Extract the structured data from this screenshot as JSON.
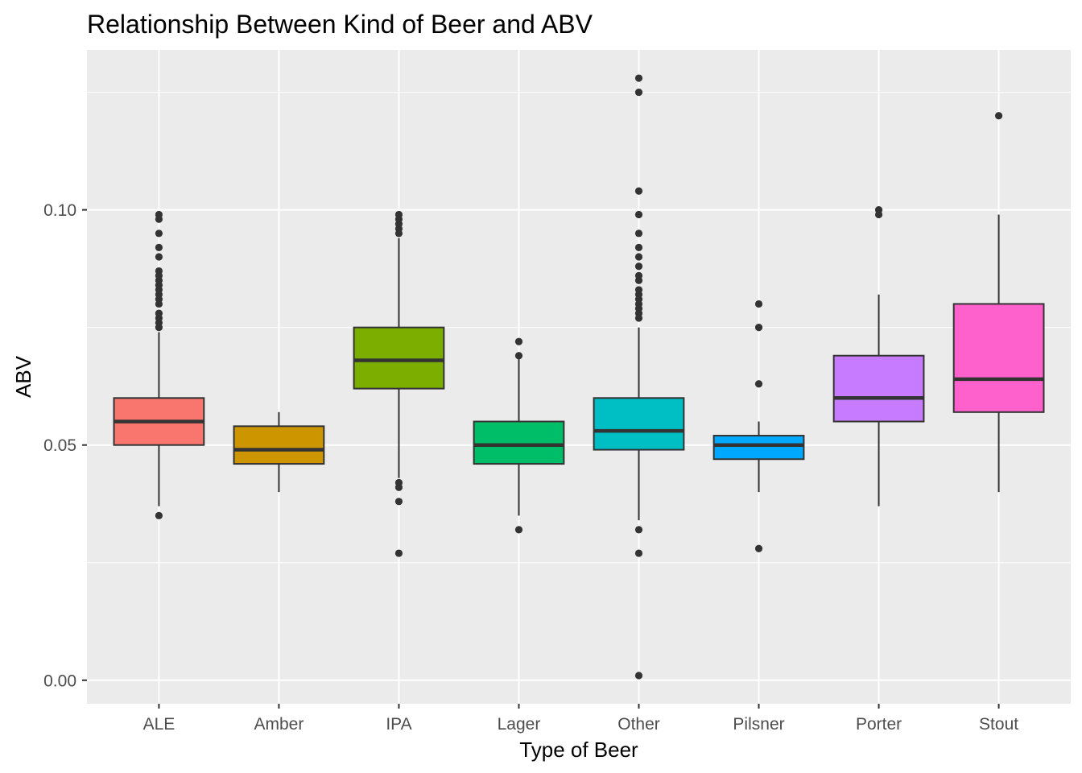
{
  "chart_data": {
    "type": "boxplot",
    "title": "Relationship Between Kind of Beer and ABV",
    "xlabel": "Type of Beer",
    "ylabel": "ABV",
    "ylim": [
      -0.005,
      0.134
    ],
    "yticks": [
      0.0,
      0.05,
      0.1
    ],
    "ytick_labels": [
      "0.00",
      "0.05",
      "0.10"
    ],
    "grid": true,
    "legend": "none",
    "categories": [
      "ALE",
      "Amber",
      "IPA",
      "Lager",
      "Other",
      "Pilsner",
      "Porter",
      "Stout"
    ],
    "boxes": [
      {
        "category": "ALE",
        "color": "#F8766D",
        "whisker_low": 0.037,
        "q1": 0.05,
        "median": 0.055,
        "q3": 0.06,
        "whisker_high": 0.074,
        "outliers": [
          0.035,
          0.075,
          0.076,
          0.077,
          0.078,
          0.08,
          0.081,
          0.082,
          0.083,
          0.084,
          0.085,
          0.086,
          0.087,
          0.09,
          0.092,
          0.095,
          0.098,
          0.099
        ]
      },
      {
        "category": "Amber",
        "color": "#CD9600",
        "whisker_low": 0.04,
        "q1": 0.046,
        "median": 0.049,
        "q3": 0.054,
        "whisker_high": 0.057,
        "outliers": []
      },
      {
        "category": "IPA",
        "color": "#7CAE00",
        "whisker_low": 0.043,
        "q1": 0.062,
        "median": 0.068,
        "q3": 0.075,
        "whisker_high": 0.094,
        "outliers": [
          0.027,
          0.038,
          0.041,
          0.042,
          0.095,
          0.096,
          0.097,
          0.098,
          0.099
        ]
      },
      {
        "category": "Lager",
        "color": "#00BE67",
        "whisker_low": 0.035,
        "q1": 0.046,
        "median": 0.05,
        "q3": 0.055,
        "whisker_high": 0.069,
        "outliers": [
          0.032,
          0.069,
          0.072
        ]
      },
      {
        "category": "Other",
        "color": "#00BFC4",
        "whisker_low": 0.034,
        "q1": 0.049,
        "median": 0.053,
        "q3": 0.06,
        "whisker_high": 0.075,
        "outliers": [
          0.001,
          0.027,
          0.032,
          0.077,
          0.078,
          0.079,
          0.08,
          0.081,
          0.082,
          0.083,
          0.085,
          0.086,
          0.088,
          0.09,
          0.092,
          0.095,
          0.099,
          0.104,
          0.125,
          0.128
        ]
      },
      {
        "category": "Pilsner",
        "color": "#00A9FF",
        "whisker_low": 0.04,
        "q1": 0.047,
        "median": 0.05,
        "q3": 0.052,
        "whisker_high": 0.055,
        "outliers": [
          0.028,
          0.063,
          0.075,
          0.08
        ]
      },
      {
        "category": "Porter",
        "color": "#C77CFF",
        "whisker_low": 0.037,
        "q1": 0.055,
        "median": 0.06,
        "q3": 0.069,
        "whisker_high": 0.082,
        "outliers": [
          0.099,
          0.1
        ]
      },
      {
        "category": "Stout",
        "color": "#FF61CC",
        "whisker_low": 0.04,
        "q1": 0.057,
        "median": 0.064,
        "q3": 0.08,
        "whisker_high": 0.099,
        "outliers": [
          0.12
        ]
      }
    ]
  }
}
